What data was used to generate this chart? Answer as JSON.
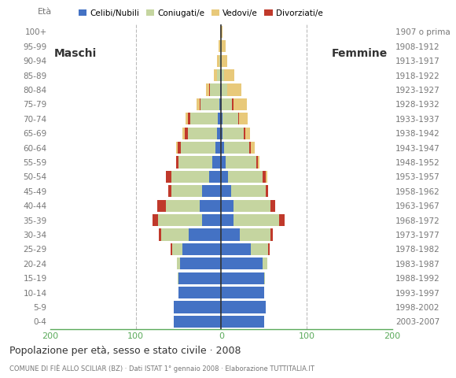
{
  "title": "Popolazione per età, sesso e stato civile · 2008",
  "subtitle": "COMUNE DI FIÈ ALLO SCILIAR (BZ) · Dati ISTAT 1° gennaio 2008 · Elaborazione TUTTITALIA.IT",
  "age_groups": [
    "0-4",
    "5-9",
    "10-14",
    "15-19",
    "20-24",
    "25-29",
    "30-34",
    "35-39",
    "40-44",
    "45-49",
    "50-54",
    "55-59",
    "60-64",
    "65-69",
    "70-74",
    "75-79",
    "80-84",
    "85-89",
    "90-94",
    "95-99",
    "100+"
  ],
  "birth_years": [
    "2003-2007",
    "1998-2002",
    "1993-1997",
    "1988-1992",
    "1983-1987",
    "1978-1982",
    "1973-1977",
    "1968-1972",
    "1963-1967",
    "1958-1962",
    "1953-1957",
    "1948-1952",
    "1943-1947",
    "1938-1942",
    "1933-1937",
    "1928-1932",
    "1923-1927",
    "1918-1922",
    "1913-1917",
    "1908-1912",
    "1907 o prima"
  ],
  "males_celibi": [
    55,
    55,
    50,
    50,
    48,
    45,
    38,
    22,
    25,
    22,
    14,
    10,
    7,
    5,
    4,
    2,
    1,
    1,
    0,
    0,
    0
  ],
  "males_coniugati": [
    0,
    0,
    0,
    1,
    4,
    12,
    32,
    52,
    40,
    36,
    44,
    40,
    40,
    34,
    32,
    22,
    12,
    4,
    2,
    1,
    0
  ],
  "males_vedovi": [
    0,
    0,
    0,
    0,
    0,
    0,
    0,
    0,
    0,
    0,
    0,
    0,
    2,
    2,
    3,
    4,
    4,
    4,
    3,
    2,
    1
  ],
  "males_divorziati": [
    0,
    0,
    0,
    0,
    0,
    2,
    3,
    6,
    10,
    4,
    7,
    3,
    4,
    4,
    3,
    1,
    1,
    0,
    0,
    0,
    0
  ],
  "females_nubili": [
    50,
    52,
    50,
    50,
    48,
    35,
    22,
    14,
    14,
    12,
    8,
    5,
    3,
    2,
    2,
    1,
    1,
    1,
    0,
    0,
    0
  ],
  "females_coniugate": [
    0,
    0,
    0,
    1,
    6,
    20,
    36,
    54,
    44,
    40,
    40,
    36,
    30,
    24,
    18,
    12,
    6,
    2,
    1,
    1,
    0
  ],
  "females_vedove": [
    0,
    0,
    0,
    0,
    0,
    0,
    0,
    0,
    0,
    0,
    2,
    2,
    4,
    6,
    10,
    16,
    17,
    12,
    6,
    4,
    2
  ],
  "females_divorziate": [
    0,
    0,
    0,
    0,
    0,
    2,
    2,
    6,
    5,
    3,
    4,
    2,
    2,
    2,
    1,
    1,
    0,
    0,
    0,
    0,
    0
  ],
  "colors": {
    "celibi_nubili": "#4472c4",
    "coniugati_e": "#c5d5a0",
    "vedovi_e": "#e8c97a",
    "divorziati_e": "#c0392b"
  },
  "xlim": 200,
  "background_color": "#ffffff",
  "grid_color": "#bbbbbb",
  "center_line_color": "#333333",
  "axis_tick_color": "#5aaa5a",
  "text_color": "#333333",
  "label_color": "#777777"
}
